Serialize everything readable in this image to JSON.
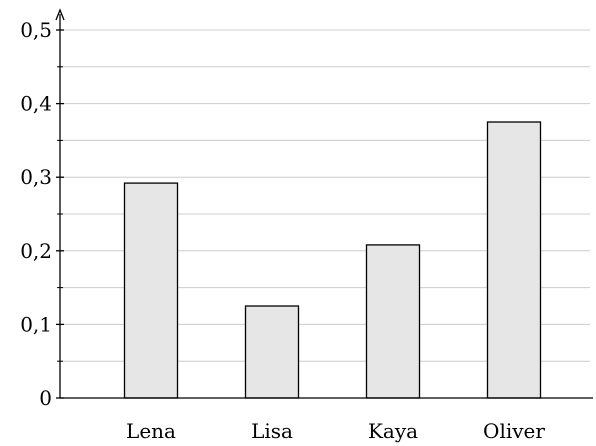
{
  "chart_data": {
    "type": "bar",
    "categories": [
      "Lena",
      "Lisa",
      "Kaya",
      "Oliver"
    ],
    "values": [
      0.292,
      0.125,
      0.208,
      0.375
    ],
    "title": "",
    "xlabel": "",
    "ylabel": "",
    "ylim": [
      0,
      0.5
    ],
    "y_ticks": [
      "0",
      "0,1",
      "0,2",
      "0,3",
      "0,4",
      "0,5"
    ],
    "y_tick_values": [
      0,
      0.1,
      0.2,
      0.3,
      0.4,
      0.5
    ],
    "grid": true,
    "bar_fill": "#e6e6e6",
    "bar_stroke": "#000000",
    "grid_color": "#cccccc"
  }
}
